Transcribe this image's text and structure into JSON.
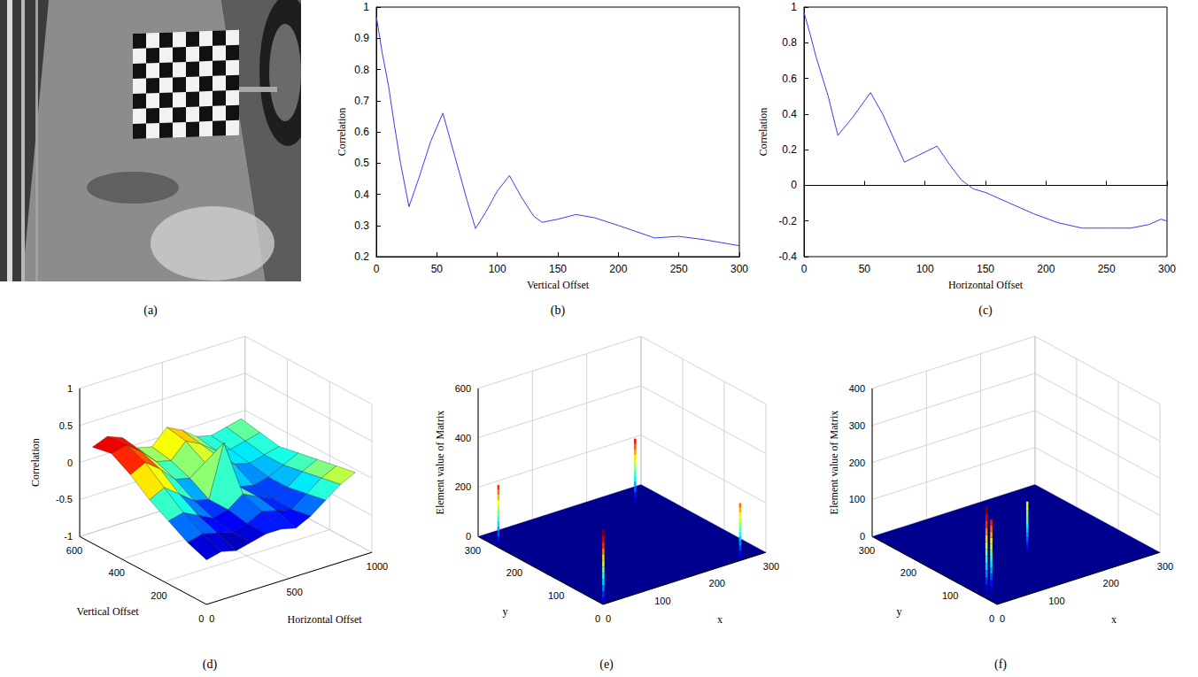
{
  "chart_data": [
    {
      "type": "image",
      "title": "(a)"
    },
    {
      "type": "line",
      "title": "(b)",
      "xlabel": "Vertical Offset",
      "ylabel": "Correlation",
      "x": [
        0,
        5,
        10,
        15,
        20,
        27,
        35,
        45,
        55,
        65,
        75,
        82,
        90,
        100,
        110,
        120,
        130,
        137,
        150,
        165,
        180,
        200,
        215,
        230,
        250,
        270,
        285,
        300
      ],
      "values": [
        0.97,
        0.85,
        0.75,
        0.62,
        0.5,
        0.36,
        0.45,
        0.57,
        0.66,
        0.52,
        0.38,
        0.29,
        0.34,
        0.41,
        0.46,
        0.39,
        0.33,
        0.31,
        0.32,
        0.335,
        0.325,
        0.3,
        0.28,
        0.26,
        0.265,
        0.255,
        0.245,
        0.235
      ],
      "color": "#3c3cf0",
      "xlim": [
        0,
        300
      ],
      "xticks": [
        0,
        50,
        100,
        150,
        200,
        250,
        300
      ],
      "ylim": [
        0.2,
        1
      ],
      "yticks": [
        0.2,
        0.3,
        0.4,
        0.5,
        0.6,
        0.7,
        0.8,
        0.9,
        1
      ],
      "grid": false
    },
    {
      "type": "line",
      "title": "(c)",
      "xlabel": "Horizontal Offset",
      "ylabel": "Correlation",
      "x": [
        0,
        5,
        10,
        20,
        28,
        40,
        55,
        65,
        75,
        83,
        95,
        110,
        120,
        130,
        140,
        150,
        170,
        190,
        210,
        230,
        250,
        270,
        285,
        295,
        300
      ],
      "values": [
        0.97,
        0.85,
        0.72,
        0.5,
        0.28,
        0.38,
        0.52,
        0.4,
        0.25,
        0.13,
        0.17,
        0.22,
        0.12,
        0.03,
        -0.02,
        -0.04,
        -0.1,
        -0.16,
        -0.21,
        -0.24,
        -0.24,
        -0.24,
        -0.22,
        -0.19,
        -0.2
      ],
      "color": "#3c3cf0",
      "xlim": [
        0,
        300
      ],
      "xticks": [
        0,
        50,
        100,
        150,
        200,
        250,
        300
      ],
      "ylim": [
        -0.4,
        1
      ],
      "yticks": [
        -0.4,
        -0.2,
        0,
        0.2,
        0.4,
        0.6,
        0.8,
        1
      ],
      "grid": false
    },
    {
      "type": "surface",
      "title": "(d)",
      "xlabel": "Horizontal Offset",
      "ylabel": "Vertical Offset",
      "zlabel": "Correlation",
      "x": [
        0,
        90,
        180,
        270,
        360,
        450,
        540,
        630,
        720,
        810,
        900
      ],
      "y": [
        0,
        90,
        180,
        270,
        360,
        450,
        540
      ],
      "z": [
        [
          -0.4,
          -0.35,
          -0.4,
          -0.35,
          -0.3,
          -0.3,
          -0.35,
          -0.25,
          -0.1,
          0.05,
          0.15
        ],
        [
          -0.3,
          -0.25,
          -0.3,
          -0.35,
          -0.3,
          -0.2,
          -0.25,
          -0.3,
          -0.15,
          0.0,
          0.1
        ],
        [
          -0.15,
          -0.1,
          -0.2,
          -0.3,
          -0.25,
          -0.1,
          -0.2,
          -0.3,
          -0.2,
          -0.05,
          0.05
        ],
        [
          0.0,
          0.1,
          -0.05,
          -0.2,
          -0.25,
          0.45,
          -0.2,
          -0.25,
          -0.2,
          -0.1,
          0.0
        ],
        [
          0.2,
          0.3,
          0.15,
          -0.05,
          -0.1,
          0.05,
          0.05,
          -0.1,
          -0.15,
          -0.1,
          -0.05
        ],
        [
          0.35,
          0.4,
          0.25,
          0.05,
          0.0,
          0.2,
          0.1,
          -0.05,
          -0.1,
          -0.05,
          0.0
        ],
        [
          0.3,
          0.38,
          0.3,
          0.1,
          0.05,
          0.25,
          0.15,
          0.0,
          -0.05,
          0.0,
          0.05
        ]
      ],
      "xlim": [
        0,
        1000
      ],
      "xticks": [
        0,
        500,
        1000
      ],
      "ylim": [
        0,
        600
      ],
      "yticks": [
        0,
        200,
        400,
        600
      ],
      "zlim": [
        -1,
        1
      ],
      "zticks": [
        -1,
        -0.5,
        0,
        0.5,
        1
      ],
      "grid": true
    },
    {
      "type": "stem3",
      "title": "(e)",
      "xlabel": "x",
      "ylabel": "y",
      "zlabel": "Element value of Matrix",
      "x": [
        2,
        2,
        254,
        254
      ],
      "y": [
        254,
        2,
        254,
        2
      ],
      "values": [
        250,
        300,
        260,
        230
      ],
      "xlim": [
        0,
        300
      ],
      "xticks": [
        0,
        100,
        200,
        300
      ],
      "ylim": [
        0,
        300
      ],
      "yticks": [
        0,
        100,
        200,
        300
      ],
      "zlim": [
        0,
        600
      ],
      "zticks": [
        0,
        200,
        400,
        600
      ],
      "grid": true
    },
    {
      "type": "stem3",
      "title": "(f)",
      "xlabel": "x",
      "ylabel": "y",
      "zlabel": "Element value of Matrix",
      "x": [
        15,
        20,
        140
      ],
      "y": [
        45,
        40,
        110
      ],
      "values": [
        230,
        195,
        145
      ],
      "xlim": [
        0,
        300
      ],
      "xticks": [
        0,
        100,
        200,
        300
      ],
      "ylim": [
        0,
        300
      ],
      "yticks": [
        0,
        100,
        200,
        300
      ],
      "zlim": [
        0,
        400
      ],
      "zticks": [
        0,
        100,
        200,
        300,
        400
      ],
      "grid": true
    }
  ]
}
